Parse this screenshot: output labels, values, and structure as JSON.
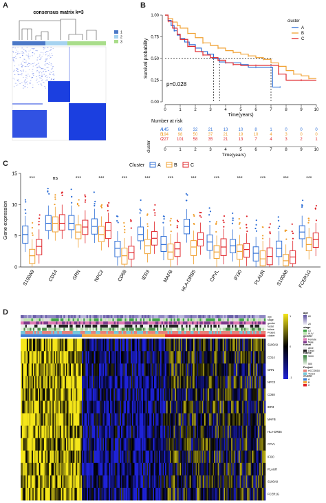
{
  "panels": {
    "a": {
      "letter": "A",
      "title": "consensus matrix k=3",
      "legend": [
        "1",
        "2",
        "3"
      ],
      "colors": {
        "c1": "#4a78c7",
        "c2": "#a6d3f0",
        "c3": "#a9dd8a",
        "block": "#1b3fe0"
      }
    },
    "b": {
      "letter": "B",
      "pvalue": "p=0.028",
      "risk_title": "Number at risk",
      "risk_axis": "cluster",
      "risk_xlabel": "Time(years)",
      "risk_rows": [
        {
          "name": "A",
          "color": "#2f6fd6",
          "values": [
            "145",
            "60",
            "32",
            "21",
            "13",
            "10",
            "8",
            "1",
            "0",
            "0",
            "0"
          ]
        },
        {
          "name": "B",
          "color": "#f0a030",
          "values": [
            "194",
            "98",
            "50",
            "37",
            "21",
            "19",
            "10",
            "4",
            "3",
            "0",
            "0"
          ]
        },
        {
          "name": "C",
          "color": "#e0252a",
          "values": [
            "227",
            "101",
            "58",
            "35",
            "21",
            "13",
            "7",
            "4",
            "3",
            "2",
            "1"
          ]
        }
      ]
    },
    "c": {
      "letter": "C"
    },
    "d": {
      "letter": "D",
      "row_labels": [
        "S100A9",
        "CD14",
        "GRN",
        "NPC2",
        "CD68",
        "IER3",
        "MAFB",
        "HLA-DRB5",
        "CPVL",
        "IFI30",
        "PLAUR",
        "S100A8",
        "FCER1G"
      ],
      "anno_labels": [
        "age",
        "stage",
        "gender",
        "fustat",
        "futime",
        "Project",
        "cluster"
      ],
      "legend": {
        "age_title": "age",
        "age_ticks": [
          "80",
          "20"
        ],
        "stage_title": "stage",
        "stage_items": [
          "I-II",
          "III-IV"
        ],
        "gender_title": "gender",
        "gender_items": [
          "Female",
          "Male"
        ],
        "fustat_title": "fustat",
        "fustat_items": [
          "Alive",
          "Dead"
        ],
        "futime_title": "futime",
        "futime_ticks": [
          "3000",
          "500"
        ],
        "project_title": "Project",
        "project_items": [
          "HCCDB18",
          "TCGA"
        ],
        "cluster_title": "cluster",
        "cluster_items": [
          "A",
          "B",
          "C"
        ],
        "colorbar_ticks": [
          "1",
          "0",
          "-1"
        ]
      }
    }
  },
  "chart_data": [
    {
      "type": "line",
      "panel": "B",
      "title": "",
      "xlabel": "Time(years)",
      "ylabel": "Survival probability",
      "xlim": [
        0,
        10
      ],
      "ylim": [
        0,
        1
      ],
      "xticks": [
        "0",
        "1",
        "2",
        "3",
        "4",
        "5",
        "6",
        "7",
        "8",
        "9",
        "10"
      ],
      "yticks": [
        "0.00",
        "0.25",
        "0.50",
        "0.75",
        "1.00"
      ],
      "legend_title": "cluster",
      "legend_position": "top-right",
      "median_line": 0.5,
      "series": [
        {
          "name": "A",
          "color": "#2f6fd6",
          "x": [
            0,
            0.2,
            0.4,
            0.6,
            0.8,
            1.0,
            1.3,
            1.6,
            2.0,
            2.4,
            2.8,
            3.2,
            3.6,
            4.0,
            4.5,
            5.0,
            5.5,
            6.0,
            6.5,
            7.0,
            7.1,
            7.6
          ],
          "y": [
            1.0,
            0.94,
            0.88,
            0.82,
            0.77,
            0.73,
            0.69,
            0.66,
            0.62,
            0.58,
            0.55,
            0.5,
            0.46,
            0.45,
            0.45,
            0.43,
            0.4,
            0.4,
            0.4,
            0.4,
            0.17,
            0.17
          ]
        },
        {
          "name": "B",
          "color": "#f0a030",
          "x": [
            0,
            0.2,
            0.5,
            0.8,
            1.0,
            1.5,
            2.0,
            2.5,
            3.0,
            3.5,
            4.0,
            4.5,
            5.0,
            5.5,
            6.0,
            6.5,
            7.0,
            7.5,
            8.0,
            8.5,
            9.0,
            9.5,
            10
          ],
          "y": [
            1.0,
            0.96,
            0.92,
            0.88,
            0.85,
            0.79,
            0.74,
            0.68,
            0.65,
            0.62,
            0.59,
            0.57,
            0.55,
            0.53,
            0.51,
            0.49,
            0.45,
            0.41,
            0.36,
            0.32,
            0.3,
            0.27,
            0.27
          ]
        },
        {
          "name": "C",
          "color": "#e0252a",
          "x": [
            0,
            0.2,
            0.5,
            0.8,
            1.0,
            1.5,
            2.0,
            2.5,
            3.0,
            3.5,
            4.0,
            4.5,
            5.0,
            6.0,
            7.0,
            7.5,
            8.0,
            9.0,
            10
          ],
          "y": [
            1.0,
            0.93,
            0.85,
            0.78,
            0.72,
            0.64,
            0.58,
            0.54,
            0.51,
            0.48,
            0.45,
            0.43,
            0.42,
            0.42,
            0.42,
            0.32,
            0.25,
            0.25,
            0.25
          ]
        }
      ]
    },
    {
      "type": "box",
      "panel": "C",
      "title": "",
      "ylabel": "Gene expression",
      "ylim": [
        0,
        15
      ],
      "yticks": [
        "0",
        "5",
        "10",
        "15"
      ],
      "legend_title": "Cluster",
      "legend_position": "top",
      "categories": [
        "S100A9",
        "CD14",
        "GRN",
        "NPC2",
        "CD68",
        "IER3",
        "MAFB",
        "HLA-DRB5",
        "CPVL",
        "IFI30",
        "PLAUR",
        "S100A8",
        "FCER1G"
      ],
      "significance": [
        "***",
        "ns",
        "***",
        "***",
        "***",
        "***",
        "***",
        "***",
        "***",
        "***",
        "***",
        "***",
        "***"
      ],
      "series": [
        {
          "name": "A",
          "color": "#2f6fd6",
          "medians": [
            5.2,
            7.0,
            7.0,
            6.5,
            3.0,
            5.2,
            3.6,
            6.5,
            4.0,
            3.4,
            2.2,
            3.0,
            5.6
          ]
        },
        {
          "name": "B",
          "color": "#f0a030",
          "medians": [
            1.8,
            7.0,
            5.6,
            5.2,
            1.8,
            3.4,
            2.4,
            3.2,
            2.4,
            2.5,
            1.3,
            1.0,
            3.6
          ]
        },
        {
          "name": "C",
          "color": "#e0252a",
          "medians": [
            3.3,
            7.0,
            6.4,
            5.8,
            2.3,
            4.6,
            2.9,
            4.4,
            3.2,
            2.8,
            1.7,
            1.6,
            4.4
          ]
        }
      ]
    },
    {
      "type": "heatmap",
      "panel": "D",
      "title": "",
      "rows": [
        "S100A9",
        "CD14",
        "GRN",
        "NPC2",
        "CD68",
        "IER3",
        "MAFB",
        "HLA-DRB5",
        "CPVL",
        "IFI30",
        "PLAUR",
        "S100A8",
        "FCER1G"
      ],
      "groups": [
        "A",
        "B",
        "C"
      ],
      "group_share": [
        0.25,
        0.34,
        0.41
      ],
      "color_scale": {
        "high": "#f5e61a",
        "mid": "#000000",
        "low": "#1e22d8"
      },
      "group_mean": [
        0.75,
        -0.55,
        -0.05
      ]
    }
  ]
}
